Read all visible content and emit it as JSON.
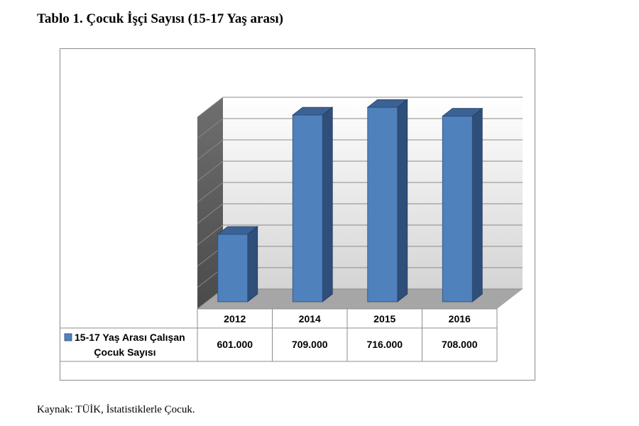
{
  "page": {
    "title": "Tablo 1. Çocuk İşçi Sayısı (15-17 Yaş arası)",
    "source": "Kaynak: TÜİK, İstatistiklerle Çocuk."
  },
  "chart_data": {
    "type": "bar",
    "title": "",
    "xlabel": "",
    "ylabel": "",
    "categories": [
      "2012",
      "2014",
      "2015",
      "2016"
    ],
    "series": [
      {
        "name": "15-17 Yaş Arası Çalışan Çocuk Sayısı",
        "name_lines": [
          "15-17 Yaş Arası Çalışan",
          "Çocuk Sayısı"
        ],
        "values": [
          601000,
          709000,
          716000,
          708000
        ],
        "value_labels": [
          "601.000",
          "709.000",
          "716.000",
          "708.000"
        ],
        "color": "#4f81bd"
      }
    ],
    "ylim": [
      540000,
      720000
    ],
    "grid": true,
    "data_table": true,
    "three_d": true
  }
}
